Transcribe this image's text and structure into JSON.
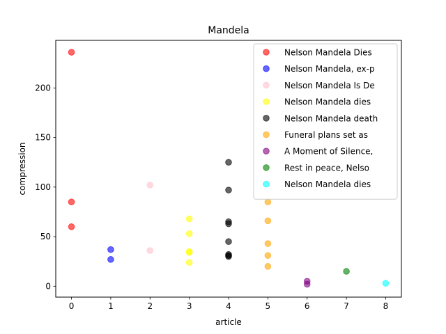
{
  "chart_data": {
    "type": "scatter",
    "title": "Mandela",
    "xlabel": "article",
    "ylabel": "compression",
    "xlim": [
      -0.4,
      8.4
    ],
    "ylim": [
      -11,
      248
    ],
    "xticks": [
      0,
      1,
      2,
      3,
      4,
      5,
      6,
      7,
      8
    ],
    "yticks": [
      0,
      50,
      100,
      150,
      200
    ],
    "grid": false,
    "legend_position": "top-right",
    "series": [
      {
        "name": "Nelson Mandela Dies",
        "color": "#ff0000",
        "x": [
          0,
          0,
          0
        ],
        "y": [
          236,
          85,
          60
        ]
      },
      {
        "name": "Nelson Mandela, ex-p",
        "color": "#0000ff",
        "x": [
          1,
          1
        ],
        "y": [
          37,
          27
        ]
      },
      {
        "name": "Nelson Mandela Is De",
        "color": "#ffc0cb",
        "x": [
          2,
          2
        ],
        "y": [
          102,
          36
        ]
      },
      {
        "name": "Nelson Mandela dies",
        "color": "#ffff00",
        "x": [
          3,
          3,
          3,
          3,
          3
        ],
        "y": [
          68,
          53,
          35,
          34,
          24
        ]
      },
      {
        "name": "Nelson Mandela death",
        "color": "#000000",
        "x": [
          4,
          4,
          4,
          4,
          4,
          4,
          4,
          4
        ],
        "y": [
          125,
          97,
          65,
          63,
          45,
          32,
          30,
          31
        ]
      },
      {
        "name": "Funeral plans set as",
        "color": "#ffa500",
        "x": [
          5,
          5,
          5,
          5,
          5
        ],
        "y": [
          85,
          66,
          43,
          31,
          20
        ]
      },
      {
        "name": "A Moment of Silence,",
        "color": "#800080",
        "x": [
          6,
          6
        ],
        "y": [
          5,
          2
        ]
      },
      {
        "name": "Rest in peace, Nelso",
        "color": "#008000",
        "x": [
          7
        ],
        "y": [
          15
        ]
      },
      {
        "name": "Nelson Mandela dies",
        "color": "#00ffff",
        "x": [
          8
        ],
        "y": [
          3
        ]
      }
    ]
  }
}
